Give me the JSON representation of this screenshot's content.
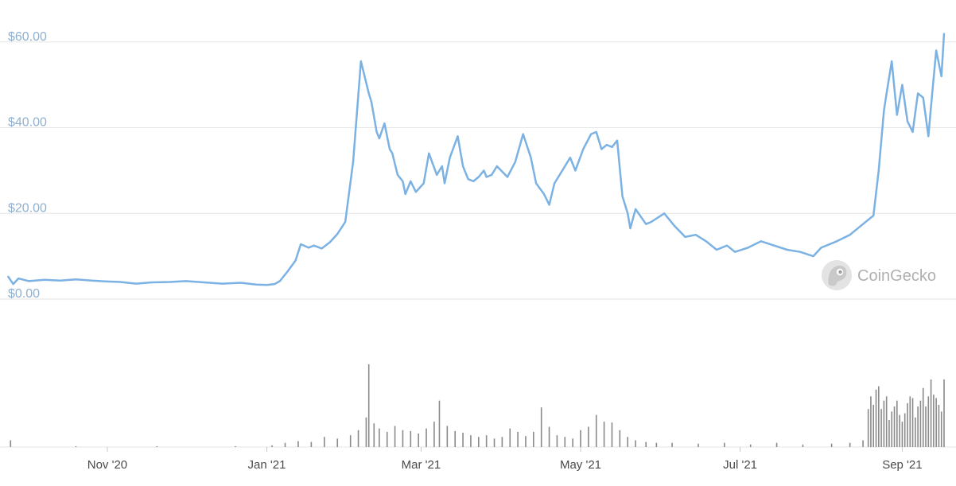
{
  "watermark": {
    "text": "CoinGecko",
    "logo_icon": "gecko-logo-icon"
  },
  "colors": {
    "line": "#7bb2e3",
    "grid": "#e6e6e6",
    "volume": "#8a8a8a",
    "y_labels": "#8fb0cf",
    "x_labels": "#4a4a4a"
  },
  "chart_data": [
    {
      "type": "line",
      "role": "price",
      "y_ticks": [
        0,
        20,
        40,
        60
      ],
      "y_tick_labels": [
        "$0.00",
        "$20.00",
        "$40.00",
        "$60.00"
      ],
      "ylim": [
        0,
        62
      ],
      "x_tick_labels": [
        "Nov '20",
        "Jan '21",
        "Mar '21",
        "May '21",
        "Jul '21",
        "Sep '21"
      ],
      "x_tick_dates": [
        "2020-11-01",
        "2021-01-01",
        "2021-03-01",
        "2021-05-01",
        "2021-07-01",
        "2021-09-01"
      ],
      "xlim": [
        "2020-09-24",
        "2021-09-17"
      ],
      "grid": "horizontal",
      "series": [
        {
          "x": [
            "2020-09-24",
            "2020-09-26",
            "2020-09-28",
            "2020-10-02",
            "2020-10-08",
            "2020-10-14",
            "2020-10-20",
            "2020-10-26",
            "2020-11-01",
            "2020-11-06",
            "2020-11-12",
            "2020-11-18",
            "2020-11-25",
            "2020-12-01",
            "2020-12-08",
            "2020-12-15",
            "2020-12-22",
            "2020-12-28",
            "2021-01-01",
            "2021-01-04",
            "2021-01-06",
            "2021-01-09",
            "2021-01-12",
            "2021-01-14",
            "2021-01-17",
            "2021-01-19",
            "2021-01-22",
            "2021-01-25",
            "2021-01-28",
            "2021-01-31",
            "2021-02-03",
            "2021-02-06",
            "2021-02-09",
            "2021-02-10",
            "2021-02-12",
            "2021-02-13",
            "2021-02-15",
            "2021-02-17",
            "2021-02-18",
            "2021-02-20",
            "2021-02-22",
            "2021-02-23",
            "2021-02-25",
            "2021-02-27",
            "2021-03-02",
            "2021-03-04",
            "2021-03-07",
            "2021-03-09",
            "2021-03-10",
            "2021-03-12",
            "2021-03-15",
            "2021-03-17",
            "2021-03-19",
            "2021-03-21",
            "2021-03-23",
            "2021-03-25",
            "2021-03-26",
            "2021-03-28",
            "2021-03-30",
            "2021-04-03",
            "2021-04-06",
            "2021-04-09",
            "2021-04-12",
            "2021-04-14",
            "2021-04-17",
            "2021-04-19",
            "2021-04-21",
            "2021-04-24",
            "2021-04-27",
            "2021-04-29",
            "2021-05-02",
            "2021-05-05",
            "2021-05-07",
            "2021-05-09",
            "2021-05-11",
            "2021-05-13",
            "2021-05-15",
            "2021-05-17",
            "2021-05-19",
            "2021-05-20",
            "2021-05-22",
            "2021-05-26",
            "2021-05-28",
            "2021-06-02",
            "2021-06-06",
            "2021-06-10",
            "2021-06-14",
            "2021-06-18",
            "2021-06-22",
            "2021-06-26",
            "2021-06-29",
            "2021-07-04",
            "2021-07-09",
            "2021-07-14",
            "2021-07-19",
            "2021-07-24",
            "2021-07-29",
            "2021-08-01",
            "2021-08-07",
            "2021-08-12",
            "2021-08-17",
            "2021-08-21",
            "2021-08-23",
            "2021-08-25",
            "2021-08-26",
            "2021-08-28",
            "2021-08-30",
            "2021-09-01",
            "2021-09-03",
            "2021-09-05",
            "2021-09-07",
            "2021-09-09",
            "2021-09-11",
            "2021-09-12",
            "2021-09-14",
            "2021-09-16",
            "2021-09-17"
          ],
          "y": [
            5.3,
            3.5,
            4.8,
            4.2,
            4.5,
            4.3,
            4.6,
            4.3,
            4.1,
            4.0,
            3.6,
            3.9,
            4.0,
            4.2,
            3.9,
            3.6,
            3.8,
            3.4,
            3.3,
            3.5,
            4.2,
            6.5,
            9.0,
            12.8,
            12.0,
            12.5,
            11.8,
            13.2,
            15.2,
            18.0,
            32.0,
            55.5,
            48.0,
            46.0,
            39.0,
            37.5,
            41.0,
            35.0,
            34.0,
            29.0,
            27.5,
            24.5,
            27.5,
            25.0,
            27.0,
            34.0,
            29.0,
            31.0,
            27.0,
            33.0,
            38.0,
            31.0,
            28.0,
            27.5,
            28.5,
            30.0,
            28.5,
            29.0,
            31.0,
            28.5,
            32.0,
            38.5,
            33.0,
            27.0,
            24.5,
            22.0,
            27.0,
            30.0,
            33.0,
            30.0,
            35.0,
            38.5,
            39.0,
            35.0,
            36.0,
            35.5,
            37.0,
            24.0,
            20.0,
            16.5,
            21.0,
            17.5,
            18.0,
            20.0,
            17.0,
            14.5,
            15.0,
            13.5,
            11.5,
            12.5,
            11.0,
            12.0,
            13.5,
            12.5,
            11.5,
            11.0,
            10.0,
            12.0,
            13.5,
            15.0,
            17.5,
            19.5,
            30.0,
            44.0,
            48.0,
            55.5,
            43.0,
            50.0,
            41.5,
            39.0,
            48.0,
            47.0,
            38.0,
            45.0,
            58.0,
            52.0,
            62.0
          ]
        }
      ]
    },
    {
      "type": "bar",
      "role": "volume",
      "note_values": "relative trading volume, unlabeled axis",
      "x": [
        "2020-09-25",
        "2020-10-20",
        "2020-11-20",
        "2020-12-20",
        "2021-01-03",
        "2021-01-08",
        "2021-01-13",
        "2021-01-18",
        "2021-01-23",
        "2021-01-28",
        "2021-02-02",
        "2021-02-05",
        "2021-02-08",
        "2021-02-09",
        "2021-02-11",
        "2021-02-13",
        "2021-02-16",
        "2021-02-19",
        "2021-02-22",
        "2021-02-25",
        "2021-02-28",
        "2021-03-03",
        "2021-03-06",
        "2021-03-08",
        "2021-03-11",
        "2021-03-14",
        "2021-03-17",
        "2021-03-20",
        "2021-03-23",
        "2021-03-26",
        "2021-03-29",
        "2021-04-01",
        "2021-04-04",
        "2021-04-07",
        "2021-04-10",
        "2021-04-13",
        "2021-04-16",
        "2021-04-19",
        "2021-04-22",
        "2021-04-25",
        "2021-04-28",
        "2021-05-01",
        "2021-05-04",
        "2021-05-07",
        "2021-05-10",
        "2021-05-13",
        "2021-05-16",
        "2021-05-19",
        "2021-05-22",
        "2021-05-26",
        "2021-05-30",
        "2021-06-05",
        "2021-06-15",
        "2021-06-25",
        "2021-07-05",
        "2021-07-15",
        "2021-07-25",
        "2021-08-05",
        "2021-08-12",
        "2021-08-17",
        "2021-08-19",
        "2021-08-20",
        "2021-08-21",
        "2021-08-22",
        "2021-08-23",
        "2021-08-24",
        "2021-08-25",
        "2021-08-26",
        "2021-08-27",
        "2021-08-28",
        "2021-08-29",
        "2021-08-30",
        "2021-08-31",
        "2021-09-01",
        "2021-09-02",
        "2021-09-03",
        "2021-09-04",
        "2021-09-05",
        "2021-09-06",
        "2021-09-07",
        "2021-09-08",
        "2021-09-09",
        "2021-09-10",
        "2021-09-11",
        "2021-09-12",
        "2021-09-13",
        "2021-09-14",
        "2021-09-15",
        "2021-09-16",
        "2021-09-17"
      ],
      "values": [
        8,
        1,
        1,
        1,
        2,
        5,
        7,
        6,
        12,
        10,
        14,
        20,
        35,
        98,
        28,
        22,
        18,
        25,
        20,
        19,
        16,
        22,
        30,
        55,
        25,
        19,
        17,
        14,
        12,
        14,
        10,
        12,
        22,
        18,
        13,
        18,
        47,
        24,
        14,
        12,
        10,
        20,
        24,
        38,
        30,
        29,
        20,
        12,
        8,
        6,
        5,
        5,
        4,
        5,
        3,
        5,
        3,
        4,
        5,
        8,
        45,
        60,
        50,
        68,
        72,
        45,
        55,
        60,
        32,
        42,
        48,
        55,
        38,
        30,
        40,
        52,
        60,
        58,
        35,
        48,
        55,
        70,
        48,
        60,
        80,
        62,
        58,
        50,
        42,
        80
      ]
    }
  ]
}
